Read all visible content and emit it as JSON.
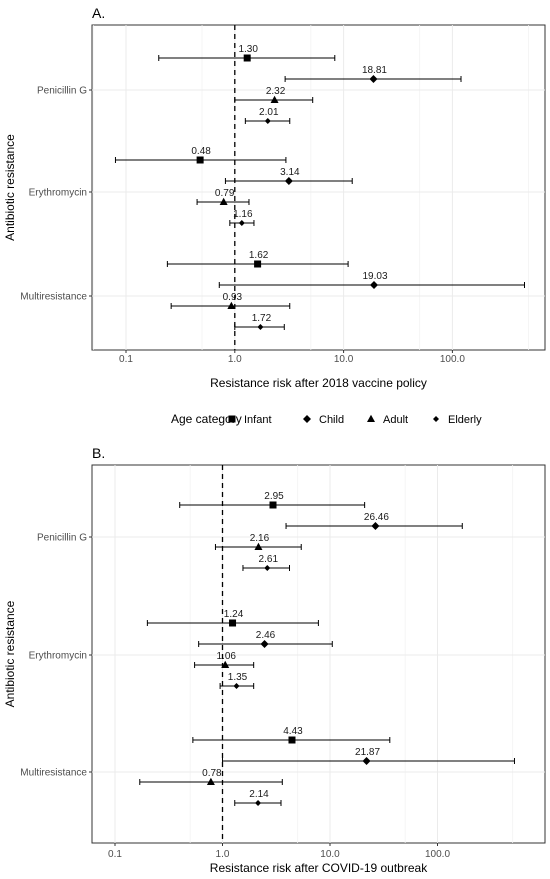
{
  "legend": {
    "title": "Age category",
    "entries": [
      {
        "name": "Infant",
        "shape": "square"
      },
      {
        "name": "Child",
        "shape": "diamond"
      },
      {
        "name": "Adult",
        "shape": "triangle"
      },
      {
        "name": "Elderly",
        "shape": "diamond-small"
      }
    ]
  },
  "chart_data": [
    {
      "type": "forest",
      "panel_label": "A.",
      "xlabel": "Resistance risk after 2018 vaccine policy",
      "ylabel": "Antibiotic resistance",
      "x_scale": "log10",
      "xlim": [
        0.05,
        900
      ],
      "x_ticks": [
        0.1,
        1.0,
        10.0,
        100.0
      ],
      "x_tick_labels": [
        "0.1",
        "1.0",
        "10.0",
        "100.0"
      ],
      "reference_line": 1.0,
      "grid": true,
      "groups": [
        "Penicillin G",
        "Erythromycin",
        "Multiresistance"
      ],
      "series": [
        {
          "name": "Infant",
          "values": [
            1.3,
            0.48,
            1.62
          ],
          "lower": [
            0.2,
            0.08,
            0.24
          ],
          "upper": [
            8.3,
            2.95,
            11.0
          ],
          "labels": [
            "1.30",
            "0.48",
            "1.62"
          ]
        },
        {
          "name": "Child",
          "values": [
            18.81,
            3.14,
            19.03
          ],
          "lower": [
            2.9,
            0.82,
            0.72
          ],
          "upper": [
            120,
            12.0,
            460
          ],
          "labels": [
            "18.81",
            "3.14",
            "19.03"
          ]
        },
        {
          "name": "Adult",
          "values": [
            2.32,
            0.79,
            0.93
          ],
          "lower": [
            1.0,
            0.45,
            0.26
          ],
          "upper": [
            5.2,
            1.35,
            3.2
          ],
          "labels": [
            "2.32",
            "0.79",
            "0.93"
          ]
        },
        {
          "name": "Elderly",
          "values": [
            2.01,
            1.16,
            1.72
          ],
          "lower": [
            1.25,
            0.9,
            1.0
          ],
          "upper": [
            3.2,
            1.5,
            2.85
          ],
          "labels": [
            "2.01",
            "1.16",
            "1.72"
          ]
        }
      ]
    },
    {
      "type": "forest",
      "panel_label": "B.",
      "xlabel": "Resistance risk after COVID-19 outbreak",
      "ylabel": "Antibiotic resistance",
      "x_scale": "log10",
      "xlim": [
        0.05,
        900
      ],
      "x_ticks": [
        0.1,
        1.0,
        10.0,
        100.0
      ],
      "x_tick_labels": [
        "0.1",
        "1.0",
        "10.0",
        "100.0"
      ],
      "reference_line": 1.0,
      "grid": true,
      "groups": [
        "Penicillin G",
        "Erythromycin",
        "Multiresistance"
      ],
      "series": [
        {
          "name": "Infant",
          "values": [
            2.95,
            1.24,
            4.43
          ],
          "lower": [
            0.4,
            0.2,
            0.53
          ],
          "upper": [
            21.0,
            7.8,
            36.0
          ],
          "labels": [
            "2.95",
            "1.24",
            "4.43"
          ]
        },
        {
          "name": "Child",
          "values": [
            26.46,
            2.46,
            21.87
          ],
          "lower": [
            3.9,
            0.6,
            1.0
          ],
          "upper": [
            170,
            10.5,
            520
          ],
          "labels": [
            "26.46",
            "2.46",
            "21.87"
          ]
        },
        {
          "name": "Adult",
          "values": [
            2.16,
            1.06,
            0.78
          ],
          "lower": [
            0.86,
            0.55,
            0.17
          ],
          "upper": [
            5.4,
            1.95,
            3.6
          ],
          "labels": [
            "2.16",
            "1.06",
            "0.78"
          ]
        },
        {
          "name": "Elderly",
          "values": [
            2.61,
            1.35,
            2.14
          ],
          "lower": [
            1.55,
            0.95,
            1.3
          ],
          "upper": [
            4.2,
            1.95,
            3.5
          ],
          "labels": [
            "2.61",
            "1.35",
            "2.14"
          ]
        }
      ]
    }
  ]
}
